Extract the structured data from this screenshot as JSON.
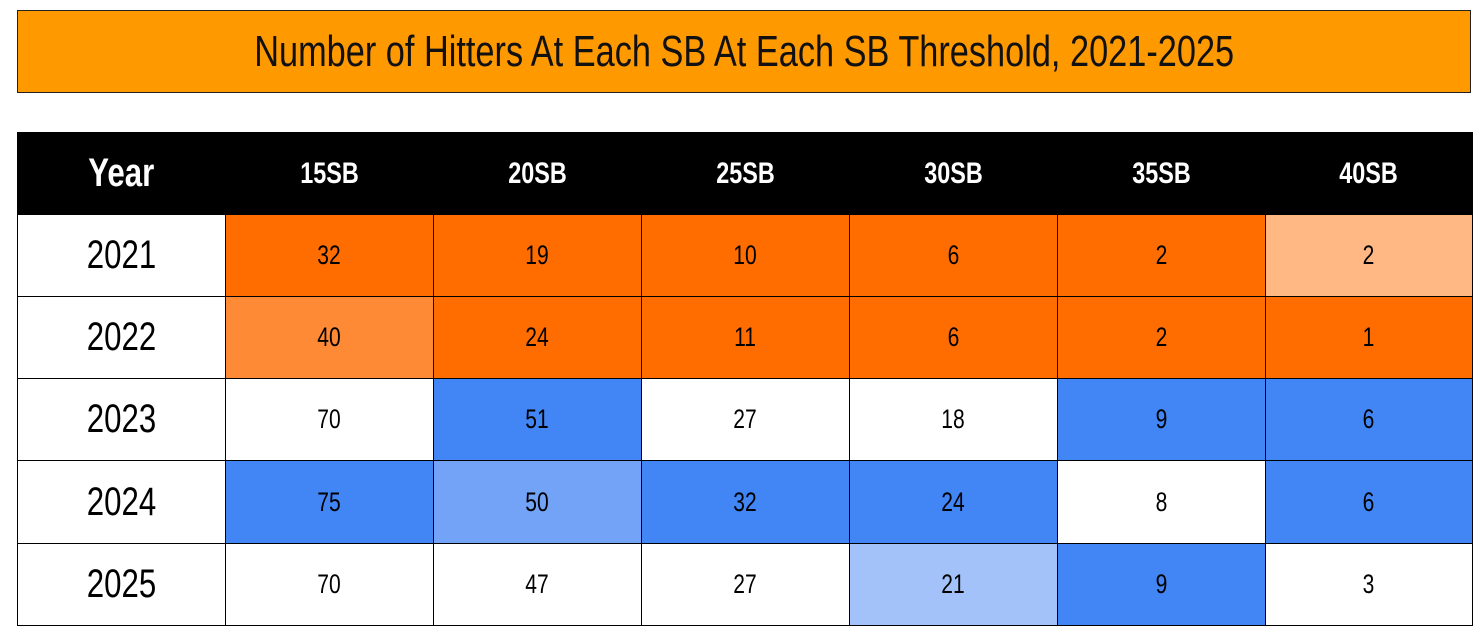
{
  "title": "Number of Hitters At Each SB At Each SB Threshold, 2021-2025",
  "table": {
    "header": [
      "Year",
      "15SB",
      "20SB",
      "25SB",
      "30SB",
      "35SB",
      "40SB"
    ],
    "rows": [
      [
        "2021",
        32,
        19,
        10,
        6,
        2,
        2
      ],
      [
        "2022",
        40,
        24,
        11,
        6,
        2,
        1
      ],
      [
        "2023",
        70,
        51,
        27,
        18,
        9,
        6
      ],
      [
        "2024",
        75,
        50,
        32,
        24,
        8,
        6
      ],
      [
        "2025",
        70,
        47,
        27,
        21,
        9,
        3
      ]
    ],
    "fills": [
      [
        "#ffffff",
        "#ff6d01",
        "#ff6d01",
        "#ff6d01",
        "#ff6d01",
        "#ff6d01",
        "#ffb784"
      ],
      [
        "#ffffff",
        "#ff8a35",
        "#ff6d01",
        "#ff6d01",
        "#ff6d01",
        "#ff6d01",
        "#ff6d01"
      ],
      [
        "#ffffff",
        "#ffffff",
        "#4285f4",
        "#ffffff",
        "#ffffff",
        "#4285f4",
        "#4285f4"
      ],
      [
        "#ffffff",
        "#4285f4",
        "#72a3f6",
        "#4285f4",
        "#4285f4",
        "#ffffff",
        "#4285f4"
      ],
      [
        "#ffffff",
        "#ffffff",
        "#ffffff",
        "#ffffff",
        "#a2c2f9",
        "#4285f4",
        "#ffffff"
      ]
    ]
  }
}
